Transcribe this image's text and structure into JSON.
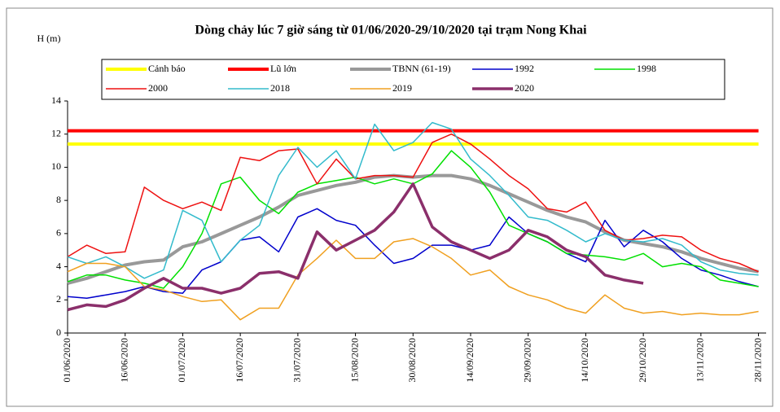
{
  "chart_data": {
    "type": "line",
    "title": "Dòng chảy lúc 7 giờ sáng từ 01/06/2020-29/10/2020 tại trạm Nong Khai",
    "y_label": "H (m)",
    "x": [
      "01/06/2020",
      "06/06/2020",
      "11/06/2020",
      "16/06/2020",
      "21/06/2020",
      "26/06/2020",
      "01/07/2020",
      "06/07/2020",
      "11/07/2020",
      "16/07/2020",
      "21/07/2020",
      "26/07/2020",
      "31/07/2020",
      "05/08/2020",
      "10/08/2020",
      "15/08/2020",
      "20/08/2020",
      "25/08/2020",
      "30/08/2020",
      "04/09/2020",
      "09/09/2020",
      "14/09/2020",
      "19/09/2020",
      "24/09/2020",
      "29/09/2020",
      "04/10/2020",
      "09/10/2020",
      "14/10/2020",
      "19/10/2020",
      "24/10/2020",
      "29/10/2020",
      "03/11/2020",
      "08/11/2020",
      "13/11/2020",
      "18/11/2020",
      "23/11/2020",
      "28/11/2020"
    ],
    "xlim": [
      "01/06/2020",
      "30/11/2020"
    ],
    "xticks": [
      "01/06/2020",
      "16/06/2020",
      "01/07/2020",
      "16/07/2020",
      "31/07/2020",
      "15/08/2020",
      "30/08/2020",
      "14/09/2020",
      "29/09/2020",
      "14/10/2020",
      "29/10/2020",
      "13/11/2020",
      "28/11/2020"
    ],
    "ylim": [
      0,
      14
    ],
    "yticks": [
      0,
      2,
      4,
      6,
      8,
      10,
      12,
      14
    ],
    "series": [
      {
        "name": "Cảnh báo",
        "color": "#ffff00",
        "width": 4,
        "values": [
          11.4,
          11.4,
          11.4,
          11.4,
          11.4,
          11.4,
          11.4,
          11.4,
          11.4,
          11.4,
          11.4,
          11.4,
          11.4,
          11.4,
          11.4,
          11.4,
          11.4,
          11.4,
          11.4,
          11.4,
          11.4,
          11.4,
          11.4,
          11.4,
          11.4,
          11.4,
          11.4,
          11.4,
          11.4,
          11.4,
          11.4,
          11.4,
          11.4,
          11.4,
          11.4,
          11.4,
          11.4
        ]
      },
      {
        "name": "Lũ lớn",
        "color": "#ff0000",
        "width": 4,
        "values": [
          12.2,
          12.2,
          12.2,
          12.2,
          12.2,
          12.2,
          12.2,
          12.2,
          12.2,
          12.2,
          12.2,
          12.2,
          12.2,
          12.2,
          12.2,
          12.2,
          12.2,
          12.2,
          12.2,
          12.2,
          12.2,
          12.2,
          12.2,
          12.2,
          12.2,
          12.2,
          12.2,
          12.2,
          12.2,
          12.2,
          12.2,
          12.2,
          12.2,
          12.2,
          12.2,
          12.2,
          12.2
        ]
      },
      {
        "name": "TBNN (61-19)",
        "color": "#999999",
        "width": 4,
        "values": [
          3.0,
          3.3,
          3.7,
          4.1,
          4.3,
          4.4,
          5.2,
          5.5,
          6.0,
          6.5,
          7.0,
          7.6,
          8.3,
          8.6,
          8.9,
          9.1,
          9.4,
          9.5,
          9.4,
          9.5,
          9.5,
          9.3,
          8.9,
          8.4,
          7.9,
          7.4,
          7.0,
          6.7,
          6.1,
          5.6,
          5.4,
          5.2,
          4.9,
          4.5,
          4.2,
          3.9,
          3.7
        ]
      },
      {
        "name": "1992",
        "color": "#0000cc",
        "width": 1.5,
        "values": [
          2.2,
          2.1,
          2.3,
          2.5,
          2.8,
          2.5,
          2.4,
          3.8,
          4.3,
          5.6,
          5.8,
          4.9,
          7.0,
          7.5,
          6.8,
          6.5,
          5.3,
          4.2,
          4.5,
          5.3,
          5.3,
          5.0,
          5.3,
          7.0,
          6.0,
          5.5,
          4.8,
          4.3,
          6.8,
          5.2,
          6.2,
          5.5,
          4.5,
          3.8,
          3.5,
          3.1,
          2.8
        ]
      },
      {
        "name": "1998",
        "color": "#00e000",
        "width": 1.5,
        "values": [
          3.1,
          3.5,
          3.5,
          3.2,
          3.0,
          2.7,
          4.0,
          6.0,
          9.0,
          9.4,
          8.0,
          7.2,
          8.5,
          9.0,
          9.2,
          9.4,
          9.0,
          9.3,
          9.0,
          9.6,
          11.0,
          10.0,
          8.5,
          6.5,
          6.0,
          5.5,
          4.8,
          4.7,
          4.6,
          4.4,
          4.8,
          4.0,
          4.2,
          4.0,
          3.2,
          3.0,
          2.8
        ]
      },
      {
        "name": "2000",
        "color": "#ee1111",
        "width": 1.5,
        "values": [
          4.6,
          5.3,
          4.8,
          4.9,
          8.8,
          8.0,
          7.5,
          7.9,
          7.4,
          10.6,
          10.4,
          11.0,
          11.1,
          9.0,
          10.5,
          9.3,
          9.5,
          9.5,
          9.4,
          11.5,
          12.0,
          11.4,
          10.5,
          9.5,
          8.7,
          7.5,
          7.3,
          7.9,
          6.2,
          5.6,
          5.7,
          5.9,
          5.8,
          5.0,
          4.5,
          4.2,
          3.7
        ]
      },
      {
        "name": "2018",
        "color": "#33bbcc",
        "width": 1.5,
        "values": [
          4.6,
          4.2,
          4.6,
          4.0,
          3.3,
          3.8,
          7.4,
          6.8,
          4.3,
          5.6,
          6.5,
          9.5,
          11.2,
          10.0,
          11.0,
          9.3,
          12.6,
          11.0,
          11.5,
          12.7,
          12.3,
          10.5,
          9.5,
          8.3,
          7.0,
          6.8,
          6.2,
          5.5,
          6.0,
          5.6,
          5.5,
          5.7,
          5.3,
          4.3,
          3.8,
          3.6,
          3.5
        ]
      },
      {
        "name": "2019",
        "color": "#f0a020",
        "width": 1.5,
        "values": [
          3.7,
          4.2,
          4.2,
          4.0,
          2.8,
          2.6,
          2.2,
          1.9,
          2.0,
          0.8,
          1.5,
          1.5,
          3.5,
          4.5,
          5.6,
          4.5,
          4.5,
          5.5,
          5.7,
          5.2,
          4.5,
          3.5,
          3.8,
          2.8,
          2.3,
          2.0,
          1.5,
          1.2,
          2.3,
          1.5,
          1.2,
          1.3,
          1.1,
          1.2,
          1.1,
          1.1,
          1.3
        ]
      },
      {
        "name": "2020",
        "color": "#8b2f6b",
        "width": 3.5,
        "values": [
          1.4,
          1.7,
          1.6,
          2.0,
          2.7,
          3.3,
          2.7,
          2.7,
          2.4,
          2.7,
          3.6,
          3.7,
          3.3,
          6.1,
          5.0,
          5.6,
          6.2,
          7.3,
          9.0,
          6.4,
          5.5,
          5.0,
          4.5,
          5.0,
          6.2,
          5.8,
          5.0,
          4.6,
          3.5,
          3.2,
          3.0,
          null,
          null,
          null,
          null,
          null,
          null
        ]
      }
    ]
  }
}
